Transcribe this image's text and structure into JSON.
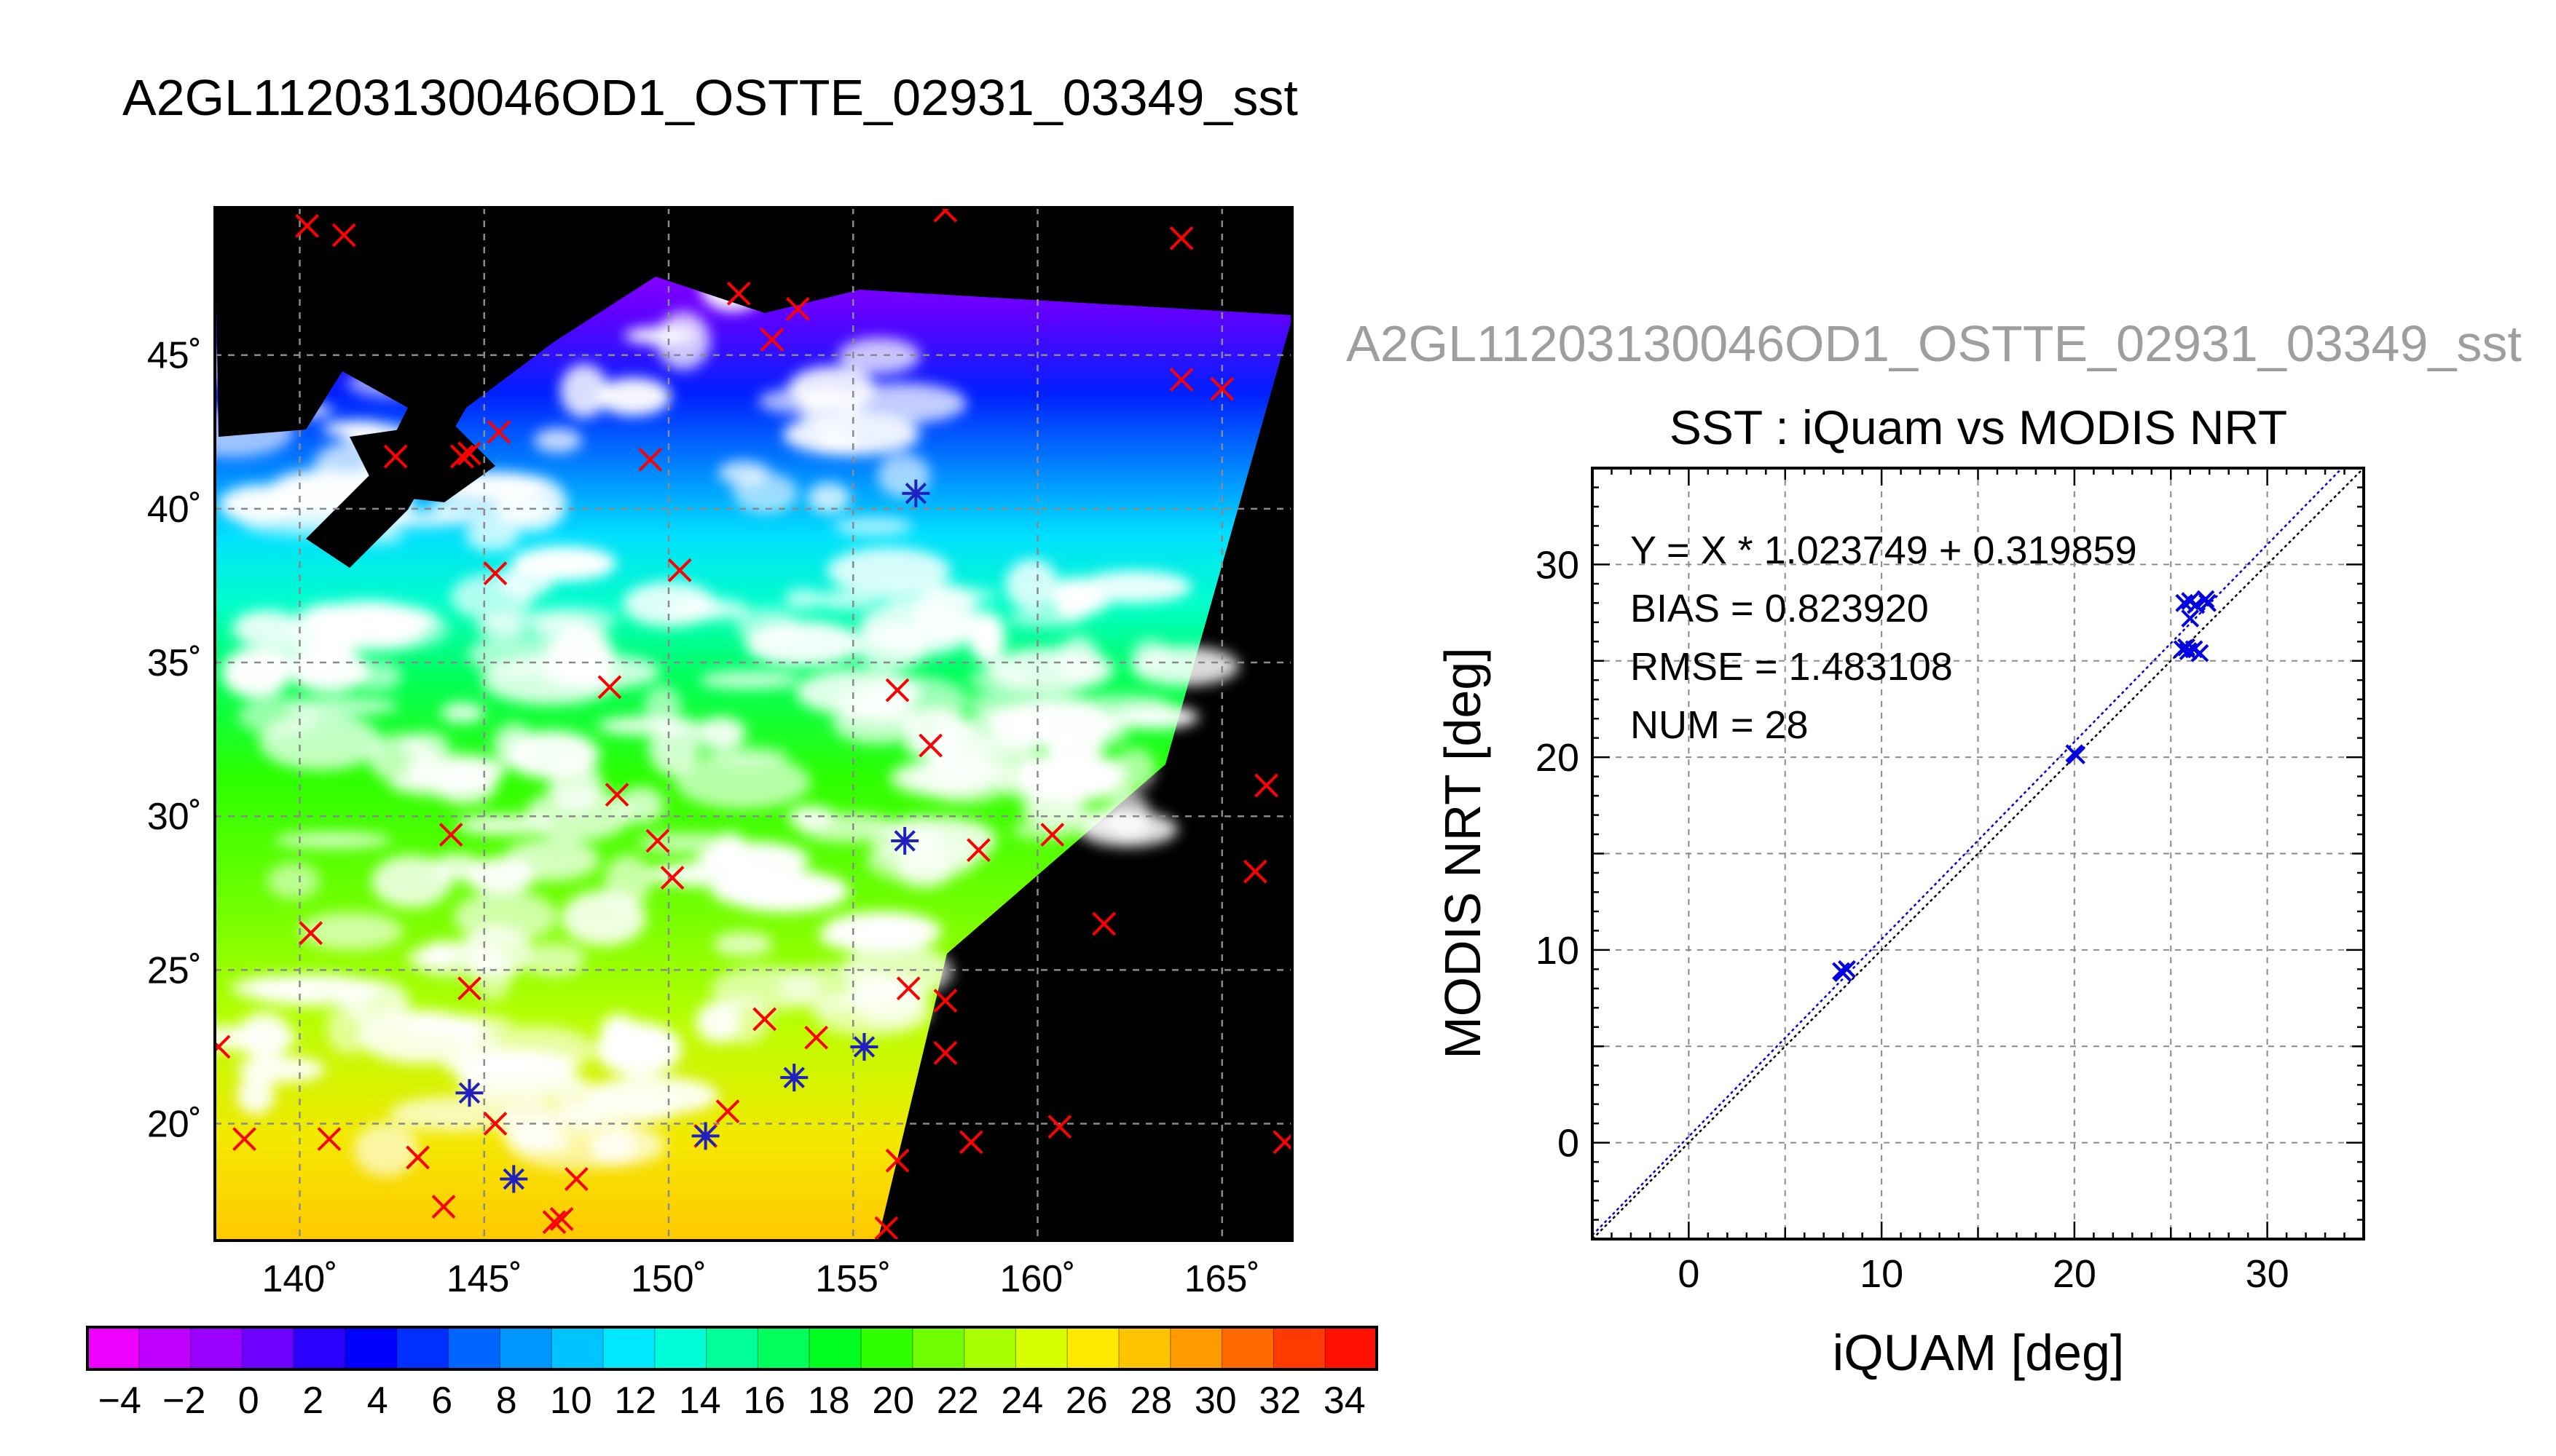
{
  "figure": {
    "main_title": "A2GL11203130046OD1_OSTTE_02931_03349_sst"
  },
  "chart_data": [
    {
      "type": "map",
      "x_ticks": [
        "140˚",
        "145˚",
        "150˚",
        "155˚",
        "160˚",
        "165˚"
      ],
      "y_ticks": [
        "20˚",
        "25˚",
        "30˚",
        "35˚",
        "40˚",
        "45˚"
      ],
      "xlim": [
        137.7,
        166.9
      ],
      "ylim": [
        16.2,
        49.8
      ],
      "grid": true,
      "colorbar": {
        "labels": [
          "−4",
          "−2",
          "0",
          "2",
          "4",
          "6",
          "8",
          "10",
          "12",
          "14",
          "16",
          "18",
          "20",
          "22",
          "24",
          "26",
          "28",
          "30",
          "32",
          "34"
        ],
        "range": [
          -5,
          35
        ],
        "colors": [
          "#ee00ff",
          "#c000ff",
          "#9a00ff",
          "#6e00ff",
          "#2a00ff",
          "#0000ff",
          "#0030ff",
          "#0066ff",
          "#0096ff",
          "#00c4ff",
          "#00e8ff",
          "#00ffd8",
          "#00ff9a",
          "#00ff5a",
          "#00ff20",
          "#30ff00",
          "#70ff00",
          "#a8ff00",
          "#d8ff00",
          "#ffe800",
          "#ffc400",
          "#ff9a00",
          "#ff6a00",
          "#ff3a00",
          "#ff1000"
        ]
      },
      "markers_red_x": [
        [
          140.2,
          49.2
        ],
        [
          141.2,
          48.9
        ],
        [
          157.5,
          49.7
        ],
        [
          163.9,
          48.8
        ],
        [
          151.9,
          47.0
        ],
        [
          153.5,
          46.5
        ],
        [
          152.8,
          45.5
        ],
        [
          163.9,
          44.2
        ],
        [
          165.0,
          43.9
        ],
        [
          142.6,
          41.7
        ],
        [
          144.4,
          41.7
        ],
        [
          144.6,
          41.8
        ],
        [
          145.4,
          42.5
        ],
        [
          149.5,
          41.6
        ],
        [
          150.3,
          38.0
        ],
        [
          145.3,
          37.9
        ],
        [
          148.4,
          34.2
        ],
        [
          156.2,
          34.1
        ],
        [
          157.1,
          32.3
        ],
        [
          148.6,
          30.7
        ],
        [
          149.7,
          29.2
        ],
        [
          150.1,
          28.0
        ],
        [
          144.1,
          29.4
        ],
        [
          158.4,
          28.9
        ],
        [
          160.4,
          29.4
        ],
        [
          166.2,
          31.0
        ],
        [
          165.9,
          28.2
        ],
        [
          161.8,
          26.5
        ],
        [
          140.3,
          26.2
        ],
        [
          144.6,
          24.4
        ],
        [
          156.5,
          24.4
        ],
        [
          157.5,
          24.0
        ],
        [
          152.6,
          23.4
        ],
        [
          154.0,
          22.8
        ],
        [
          157.5,
          22.3
        ],
        [
          137.8,
          22.5
        ],
        [
          145.3,
          20.0
        ],
        [
          151.6,
          20.4
        ],
        [
          151.0,
          19.6
        ],
        [
          160.6,
          19.9
        ],
        [
          158.2,
          19.4
        ],
        [
          166.7,
          19.4
        ],
        [
          138.5,
          19.5
        ],
        [
          140.8,
          19.5
        ],
        [
          143.2,
          18.9
        ],
        [
          147.5,
          18.2
        ],
        [
          156.2,
          18.8
        ],
        [
          143.9,
          17.3
        ],
        [
          146.9,
          16.8
        ],
        [
          147.1,
          16.9
        ],
        [
          155.9,
          16.6
        ]
      ],
      "markers_blue_star": [
        [
          156.7,
          40.5
        ],
        [
          156.4,
          29.2
        ],
        [
          144.6,
          21.0
        ],
        [
          153.4,
          21.5
        ],
        [
          155.3,
          22.5
        ],
        [
          151.0,
          19.6
        ],
        [
          145.8,
          18.2
        ]
      ]
    },
    {
      "type": "scatter",
      "suptitle": "A2GL11203130046OD1_OSTTE_02931_03349_sst",
      "title": "SST : iQuam vs MODIS NRT",
      "xlabel": "iQUAM [deg]",
      "ylabel": "MODIS NRT [deg]",
      "xlim": [
        -5,
        35
      ],
      "ylim": [
        -5,
        35
      ],
      "x_ticks": [
        "0",
        "10",
        "20",
        "30"
      ],
      "y_ticks": [
        "0",
        "10",
        "20",
        "30"
      ],
      "grid": true,
      "stats": [
        "Y = X * 1.023749 + 0.319859",
        "BIAS = 0.823920",
        "RMSE = 1.483108",
        "NUM = 28"
      ],
      "regression": {
        "slope": 1.023749,
        "intercept": 0.319859
      },
      "points": [
        [
          8.0,
          8.8
        ],
        [
          8.2,
          9.0
        ],
        [
          7.9,
          8.9
        ],
        [
          20.0,
          20.2
        ],
        [
          20.1,
          20.1
        ],
        [
          25.7,
          28.0
        ],
        [
          26.0,
          28.1
        ],
        [
          26.3,
          27.9
        ],
        [
          26.8,
          28.2
        ],
        [
          26.9,
          28.0
        ],
        [
          26.0,
          27.2
        ],
        [
          25.6,
          25.6
        ],
        [
          25.9,
          25.5
        ],
        [
          26.2,
          25.6
        ],
        [
          26.5,
          25.4
        ],
        [
          25.8,
          25.7
        ]
      ],
      "color": "#0000e0"
    }
  ]
}
